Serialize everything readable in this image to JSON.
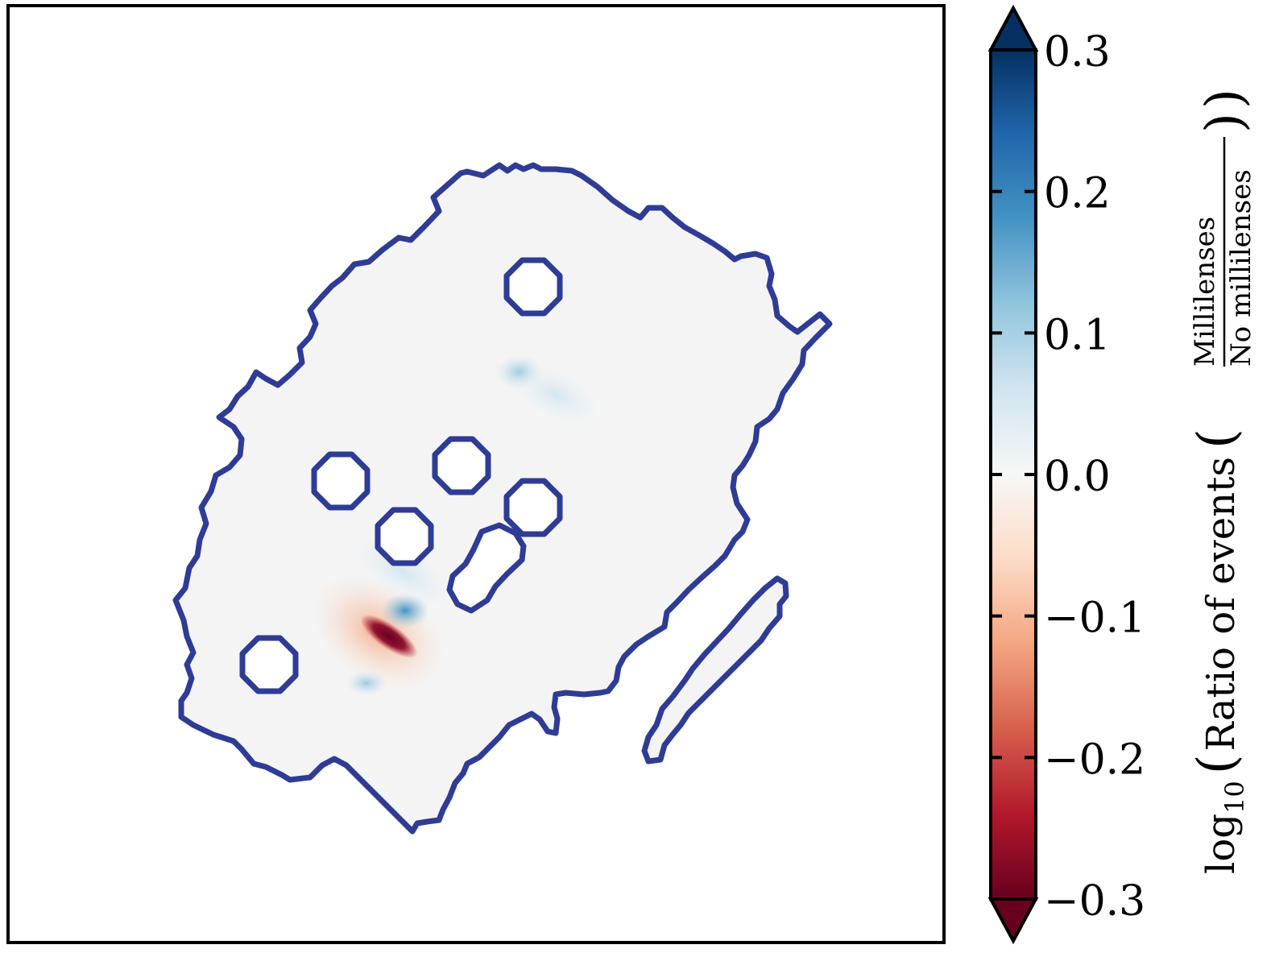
{
  "chart_data": {
    "type": "heatmap",
    "colormap": "RdBu",
    "colors": {
      "outline": "#2f3c95",
      "background_field": "#f4f4f4",
      "cmap_stops": [
        "#67001f",
        "#b2182b",
        "#d6604d",
        "#f4a582",
        "#fddbc7",
        "#f7f7f7",
        "#d1e5f0",
        "#92c5de",
        "#4393c3",
        "#2166ac",
        "#053061"
      ]
    },
    "colorbar": {
      "vmin": -0.3,
      "vmax": 0.3,
      "extend": "both",
      "ticks": [
        0.3,
        0.2,
        0.1,
        0.0,
        -0.1,
        -0.2,
        -0.3
      ],
      "tick_labels": [
        "0.3",
        "0.2",
        "0.1",
        "0.0",
        "−0.1",
        "−0.2",
        "−0.3"
      ],
      "label_prefix": "log",
      "label_subscript": "10",
      "label_main": "Ratio of events",
      "label_numerator": "Millilenses",
      "label_denominator": "No millilenses"
    },
    "hotspots": [
      {
        "feature": "deficit",
        "value": -0.3
      },
      {
        "feature": "deficit halo",
        "value": -0.12
      },
      {
        "feature": "excess",
        "value": 0.2
      },
      {
        "feature": "excess",
        "value": 0.1
      },
      {
        "feature": "excess",
        "value": 0.05
      }
    ],
    "xlabel": "",
    "ylabel": ""
  }
}
